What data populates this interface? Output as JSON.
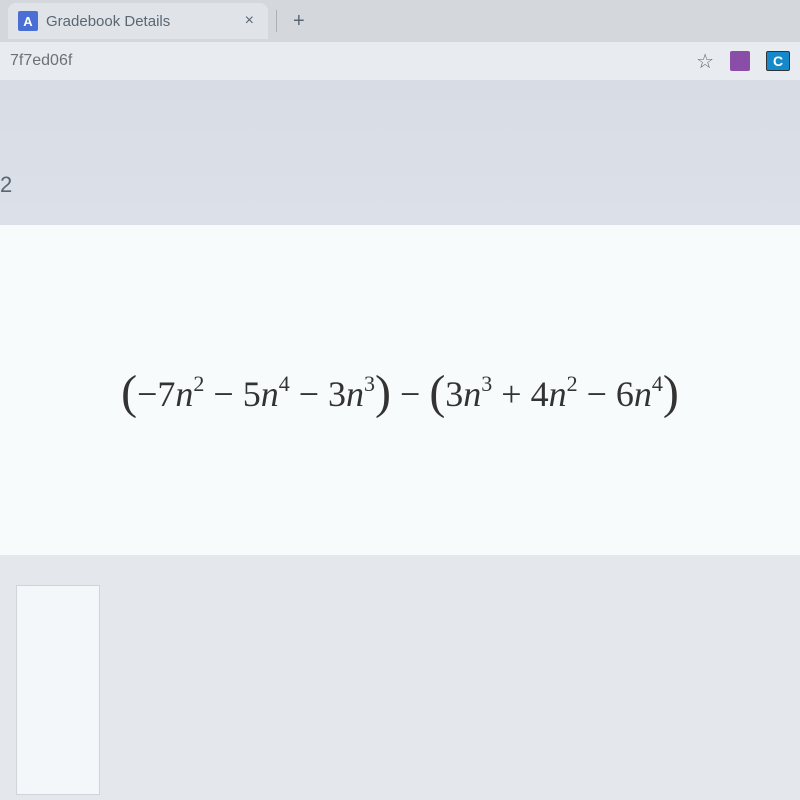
{
  "tab": {
    "favicon_text": "A",
    "title": "Gradebook Details"
  },
  "url": {
    "fragment": "7f7ed06f"
  },
  "extensions": {
    "c_label": "C"
  },
  "page": {
    "left_number": "2"
  },
  "equation": {
    "group1": {
      "term1_coef": "−7",
      "term1_var": "n",
      "term1_exp": "2",
      "op1": " − ",
      "term2_coef": "5",
      "term2_var": "n",
      "term2_exp": "4",
      "op2": " − ",
      "term3_coef": "3",
      "term3_var": "n",
      "term3_exp": "3"
    },
    "middle_op": " − ",
    "group2": {
      "term1_coef": "3",
      "term1_var": "n",
      "term1_exp": "3",
      "op1": " + ",
      "term2_coef": "4",
      "term2_var": "n",
      "term2_exp": "2",
      "op2": " − ",
      "term3_coef": "6",
      "term3_var": "n",
      "term3_exp": "4"
    }
  }
}
